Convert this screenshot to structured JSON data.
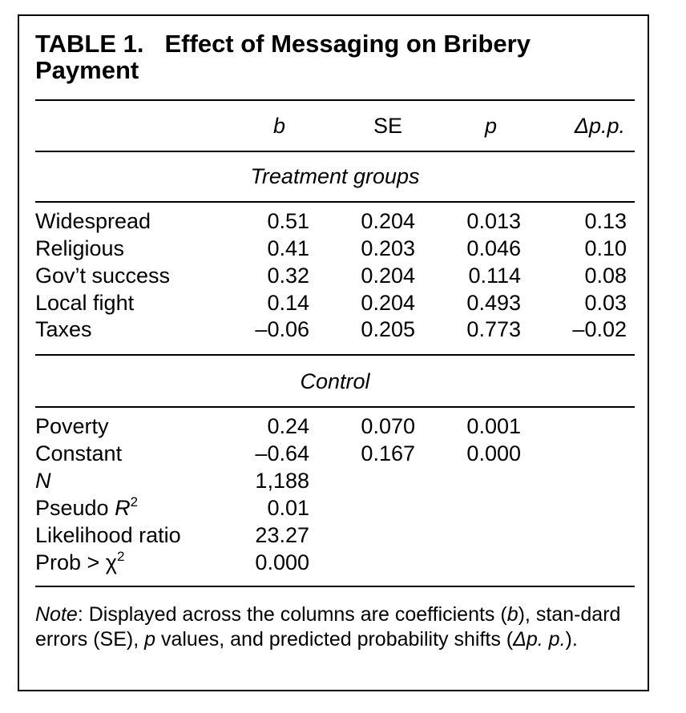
{
  "table": {
    "title_number": "TABLE 1.",
    "title_text": "Effect of Messaging on Bribery Payment",
    "columns": [
      "b",
      "SE",
      "p",
      "Δp.p."
    ],
    "sections": {
      "treatment": "Treatment groups",
      "control": "Control"
    },
    "treatment_rows": [
      {
        "label": "Widespread",
        "b": "0.51",
        "se": "0.204",
        "p": "0.013",
        "dpp": "0.13"
      },
      {
        "label": "Religious",
        "b": "0.41",
        "se": "0.203",
        "p": "0.046",
        "dpp": "0.10"
      },
      {
        "label": "Gov’t success",
        "b": "0.32",
        "se": "0.204",
        "p": "0.114",
        "dpp": "0.08"
      },
      {
        "label": "Local fight",
        "b": "0.14",
        "se": "0.204",
        "p": "0.493",
        "dpp": "0.03"
      },
      {
        "label": "Taxes",
        "b": "–0.06",
        "se": "0.205",
        "p": "0.773",
        "dpp": "–0.02"
      }
    ],
    "control_rows": [
      {
        "label": "Poverty",
        "b": "0.24",
        "se": "0.070",
        "p": "0.001"
      },
      {
        "label": "Constant",
        "b": "–0.64",
        "se": "0.167",
        "p": "0.000"
      }
    ],
    "stats": {
      "n_label": "N",
      "n_value": "1,188",
      "pseudo_label": "Pseudo ",
      "pseudo_var": "R",
      "pseudo_sup": "2",
      "pseudo_value": "0.01",
      "lr_label": "Likelihood ratio",
      "lr_value": "23.27",
      "prob_label": "Prob > χ",
      "prob_sup": "2",
      "prob_value": "0.000"
    },
    "note": {
      "lead": "Note",
      "p1": ": Displayed across the columns are coefficients (",
      "b": "b",
      "p2": "), stan-dard errors (SE), ",
      "p": "p",
      "p3": " values, and predicted probability shifts (",
      "dpp": "Δp. p.",
      "p4": ")."
    }
  }
}
